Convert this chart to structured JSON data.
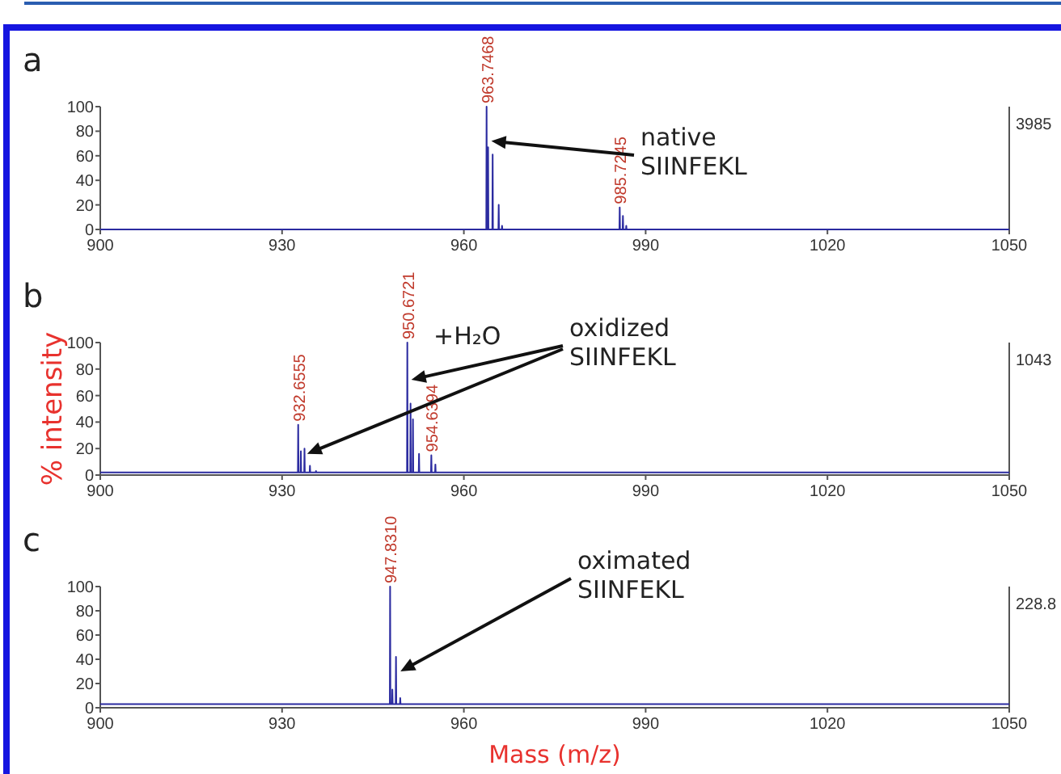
{
  "chart_data": [
    {
      "type": "line",
      "title": "a",
      "xlim": [
        900,
        1050
      ],
      "xticks": [
        900,
        930,
        960,
        990,
        1020,
        1050
      ],
      "ylim": [
        0,
        100
      ],
      "yticks": [
        0,
        20,
        40,
        60,
        80,
        100
      ],
      "grid": false,
      "line_style": "solid",
      "series": [
        {
          "color": "#2b2ba0",
          "x": [
            900,
            963.7,
            963.75,
            963.8,
            963.95,
            964.0,
            964.05,
            964.7,
            964.75,
            964.8,
            965.7,
            965.75,
            965.8,
            966.25,
            966.3,
            966.35,
            985.67,
            985.72,
            985.77,
            986.2,
            986.25,
            986.3,
            986.75,
            986.8,
            986.85,
            1050
          ],
          "values": [
            0,
            0,
            100,
            0,
            0,
            67,
            0,
            0,
            61,
            0,
            0,
            20,
            0,
            0,
            3,
            0,
            0,
            18,
            0,
            0,
            11,
            0,
            0,
            3,
            0,
            0
          ]
        }
      ],
      "annotations": [
        {
          "text": "963.7468",
          "x": 963.75,
          "y": 100
        },
        {
          "text": "985.7245",
          "x": 985.72,
          "y": 18
        },
        {
          "text": "native SIINFEKL",
          "x": 964.0,
          "y": 72
        },
        "3985"
      ]
    },
    {
      "type": "line",
      "title": "b",
      "ylabel": "% intensity",
      "xlim": [
        900,
        1050
      ],
      "xticks": [
        900,
        930,
        960,
        990,
        1020,
        1050
      ],
      "ylim": [
        0,
        100
      ],
      "yticks": [
        0,
        20,
        40,
        60,
        80,
        100
      ],
      "grid": false,
      "line_style": "solid",
      "series": [
        {
          "color": "#2b2ba0",
          "x": [
            900,
            932.61,
            932.66,
            932.71,
            933.05,
            933.1,
            933.15,
            933.65,
            933.7,
            933.75,
            934.55,
            934.6,
            934.65,
            935.55,
            935.6,
            935.65,
            950.62,
            950.67,
            950.72,
            951.15,
            951.2,
            951.25,
            951.55,
            951.6,
            951.65,
            952.55,
            952.6,
            952.65,
            954.58,
            954.63,
            954.68,
            955.25,
            955.3,
            955.35,
            1050
          ],
          "values": [
            2,
            2,
            38,
            2,
            2,
            18,
            2,
            2,
            20,
            2,
            2,
            7,
            2,
            2,
            3,
            2,
            2,
            100,
            2,
            2,
            54,
            2,
            2,
            42,
            2,
            2,
            16,
            2,
            2,
            15,
            2,
            2,
            8,
            2,
            2
          ]
        }
      ],
      "annotations": [
        {
          "text": "950.6721",
          "x": 950.67,
          "y": 100
        },
        {
          "text": "932.6555",
          "x": 932.66,
          "y": 38
        },
        {
          "text": "954.6394",
          "x": 954.63,
          "y": 15
        },
        "+H₂O",
        {
          "text": "oxidized SIINFEKL",
          "x": 950.8,
          "y": 72
        },
        "1043"
      ]
    },
    {
      "type": "line",
      "title": "c",
      "xlabel": "Mass (m/z)",
      "xlim": [
        900,
        1050
      ],
      "xticks": [
        900,
        930,
        960,
        990,
        1020,
        1050
      ],
      "ylim": [
        0,
        100
      ],
      "yticks": [
        0,
        20,
        40,
        60,
        80,
        100
      ],
      "grid": false,
      "line_style": "solid",
      "series": [
        {
          "color": "#2b2ba0",
          "x": [
            900,
            947.78,
            947.83,
            947.88,
            948.15,
            948.2,
            948.25,
            948.75,
            948.8,
            948.85,
            949.45,
            949.5,
            949.55,
            1050
          ],
          "values": [
            3,
            3,
            100,
            3,
            3,
            15,
            3,
            3,
            42,
            3,
            3,
            8,
            3,
            3
          ]
        }
      ],
      "annotations": [
        {
          "text": "947.8310",
          "x": 947.83,
          "y": 100
        },
        {
          "text": "oximated SIINFEKL",
          "x": 949.0,
          "y": 30
        },
        "228.8"
      ]
    }
  ]
}
